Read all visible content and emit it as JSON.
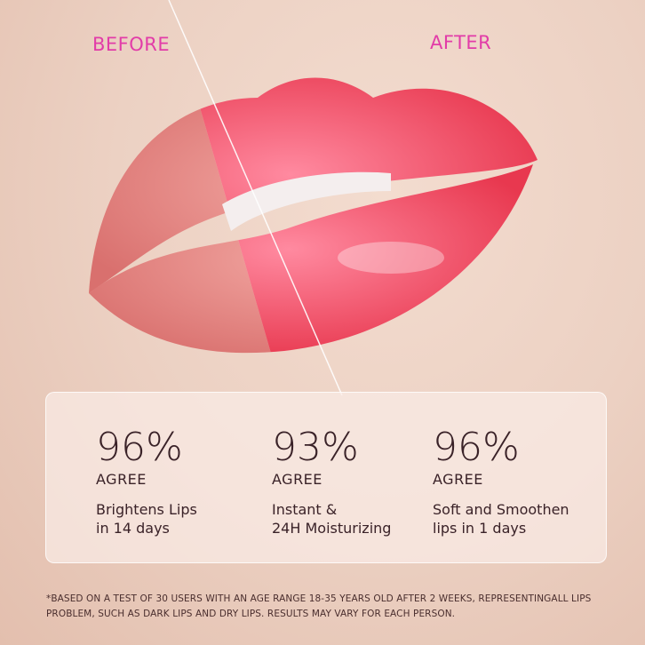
{
  "labels": {
    "before": "BEFORE",
    "after": "AFTER"
  },
  "stats": [
    {
      "percent": "96%",
      "agree": "AGREE",
      "description": "Brightens Lips\nin 14 days"
    },
    {
      "percent": "93%",
      "agree": "AGREE",
      "description": "Instant &\n24H Moisturizing"
    },
    {
      "percent": "96%",
      "agree": "AGREE",
      "description": "Soft and Smoothen\nlips in 1 days"
    }
  ],
  "footnote": "*BASED ON A TEST OF 30 USERS WITH AN AGE RANGE 18-35 YEARS OLD AFTER 2 WEEKS, REPRESENTINGALL LIPS PROBLEM, SUCH AS DARK LIPS AND DRY LIPS. RESULTS MAY VARY FOR EACH PERSON.",
  "colors": {
    "label": "#e23ca8",
    "text": "#3a2228",
    "lips_before": "#e58a8a",
    "lips_after": "#f0506e"
  }
}
